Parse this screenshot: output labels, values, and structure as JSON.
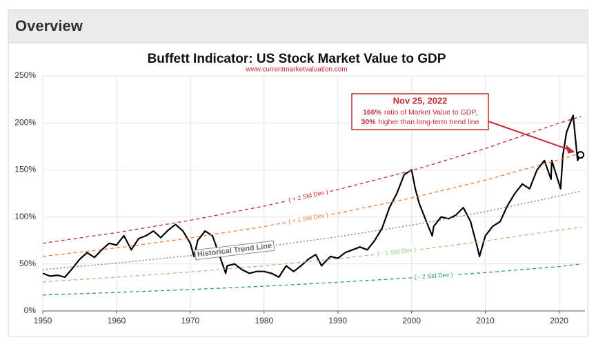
{
  "header": {
    "title": "Overview"
  },
  "chart_data": {
    "type": "line",
    "title": "Buffett Indicator: US Stock Market Value to GDP",
    "subtitle": "www.currentmarketvaluation.com",
    "xlim": [
      1950,
      2023.5
    ],
    "xticks": [
      1950,
      1960,
      1970,
      1980,
      1990,
      2000,
      2010,
      2020
    ],
    "ylim": [
      0,
      250
    ],
    "yticks": [
      {
        "value": 0,
        "label": "0%"
      },
      {
        "value": 50,
        "label": "50%"
      },
      {
        "value": 100,
        "label": "100%"
      },
      {
        "value": 150,
        "label": "150%"
      },
      {
        "value": 200,
        "label": "200%"
      },
      {
        "value": 250,
        "label": "250%"
      }
    ],
    "grid": true,
    "series": [
      {
        "color": "#000000",
        "x": [
          1950,
          1951,
          1952,
          1953,
          1954,
          1955,
          1956,
          1957,
          1958,
          1959,
          1960,
          1961,
          1962,
          1963,
          1964,
          1965,
          1966,
          1967,
          1968,
          1969,
          1970,
          1970.5,
          1971,
          1972,
          1973,
          1974,
          1974.8,
          1975,
          1976,
          1977,
          1978,
          1979,
          1980,
          1981,
          1982,
          1983,
          1984,
          1985,
          1986,
          1987,
          1987.8,
          1988,
          1989,
          1990,
          1991,
          1992,
          1993,
          1994,
          1995,
          1996,
          1997,
          1998,
          1999,
          2000,
          2000.5,
          2001,
          2002,
          2002.8,
          2003,
          2004,
          2005,
          2006,
          2007,
          2008,
          2009,
          2009.2,
          2010,
          2011,
          2012,
          2013,
          2014,
          2015,
          2016,
          2017,
          2018,
          2018.9,
          2019,
          2020.2,
          2020.5,
          2021,
          2021.9,
          2022.5,
          2022.9
        ],
        "values": [
          40,
          37,
          38,
          36,
          45,
          55,
          62,
          57,
          65,
          72,
          70,
          80,
          65,
          77,
          80,
          85,
          78,
          86,
          92,
          85,
          72,
          58,
          75,
          85,
          80,
          58,
          40,
          48,
          50,
          44,
          40,
          42,
          42,
          40,
          36,
          48,
          42,
          48,
          55,
          60,
          48,
          50,
          58,
          56,
          62,
          65,
          68,
          65,
          75,
          88,
          110,
          125,
          145,
          150,
          130,
          115,
          95,
          80,
          90,
          100,
          98,
          102,
          110,
          95,
          65,
          58,
          80,
          90,
          95,
          112,
          125,
          135,
          130,
          150,
          160,
          140,
          160,
          130,
          165,
          190,
          208,
          160,
          166
        ]
      },
      {
        "name": "( + 2 Std Dev )",
        "color": "#c62a30",
        "dash": "5,4",
        "x": [
          1950,
          1960,
          1970,
          1980,
          1990,
          2000,
          2010,
          2020,
          2023
        ],
        "values": [
          72,
          83.3,
          96.4,
          111.5,
          129,
          149.3,
          172.7,
          199.8,
          207
        ]
      },
      {
        "name": "( + 1 Std Dev )",
        "color": "#f07a3a",
        "dash": "5,4",
        "x": [
          1950,
          1960,
          1970,
          1980,
          1990,
          2000,
          2010,
          2020,
          2023
        ],
        "values": [
          58,
          67.1,
          77.6,
          89.8,
          103.9,
          120.2,
          139.1,
          160.9,
          168
        ]
      },
      {
        "name": "Historical Trend Line",
        "color": "#777777",
        "dash": "2,3",
        "x": [
          1950,
          1960,
          1970,
          1980,
          1990,
          2000,
          2010,
          2020,
          2023
        ],
        "values": [
          44,
          50.9,
          58.9,
          68.2,
          78.9,
          91.3,
          105.6,
          122.2,
          127.6
        ]
      },
      {
        "name": "( - 1 Std Dev )",
        "color": "#92cf7c",
        "dash": "5,4",
        "x": [
          1950,
          1960,
          1970,
          1980,
          1990,
          2000,
          2010,
          2020,
          2023
        ],
        "values": [
          31,
          35.9,
          41.5,
          48,
          55.6,
          64.3,
          74.4,
          86.1,
          89
        ]
      },
      {
        "name": "( - 2 Std Dev )",
        "color": "#2f9a5c",
        "dash": "5,4",
        "x": [
          1950,
          1960,
          1970,
          1980,
          1990,
          2000,
          2010,
          2020,
          2023
        ],
        "values": [
          17,
          19.7,
          22.8,
          26.3,
          30.5,
          35.3,
          40.8,
          47.2,
          50
        ]
      }
    ],
    "annotation": {
      "title": "Nov 25, 2022",
      "line1_bold": "166%",
      "line1": "ratio of Market Value to GDP,",
      "line2_bold": "30%",
      "line2": "higher than long-term trend line",
      "x": 2022.9,
      "value": 166,
      "color": "#c62a30"
    }
  }
}
